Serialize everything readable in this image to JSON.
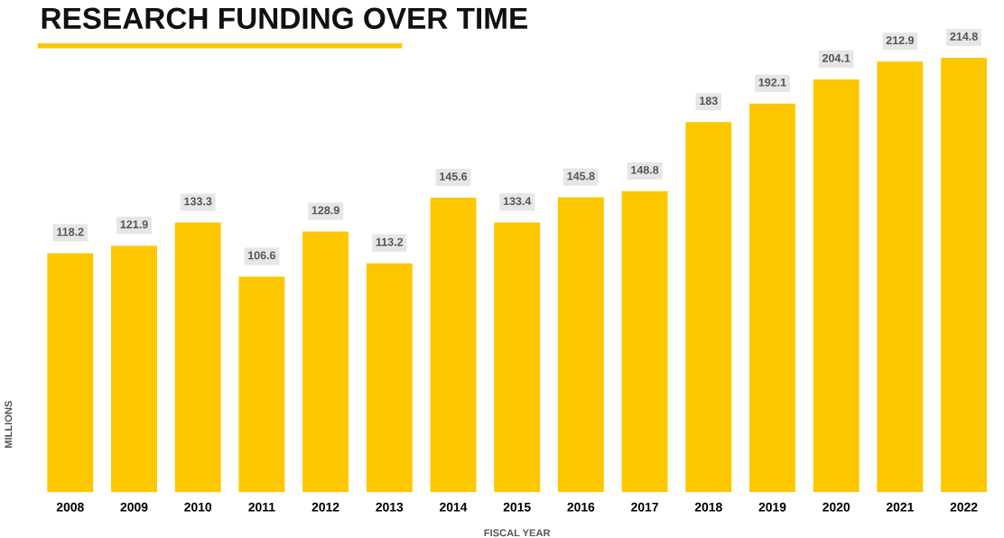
{
  "chart_data": {
    "type": "bar",
    "title": "RESEARCH FUNDING OVER TIME",
    "xlabel": "FISCAL YEAR",
    "ylabel": "MILLIONS",
    "categories": [
      "2008",
      "2009",
      "2010",
      "2011",
      "2012",
      "2013",
      "2014",
      "2015",
      "2016",
      "2017",
      "2018",
      "2019",
      "2020",
      "2021",
      "2022"
    ],
    "values": [
      118.2,
      121.9,
      133.3,
      106.6,
      128.9,
      113.2,
      145.6,
      133.4,
      145.8,
      148.8,
      183,
      192.1,
      204.1,
      212.9,
      214.8
    ],
    "color": "#fdc700",
    "data_labels": true,
    "grid": false,
    "legend": false
  }
}
